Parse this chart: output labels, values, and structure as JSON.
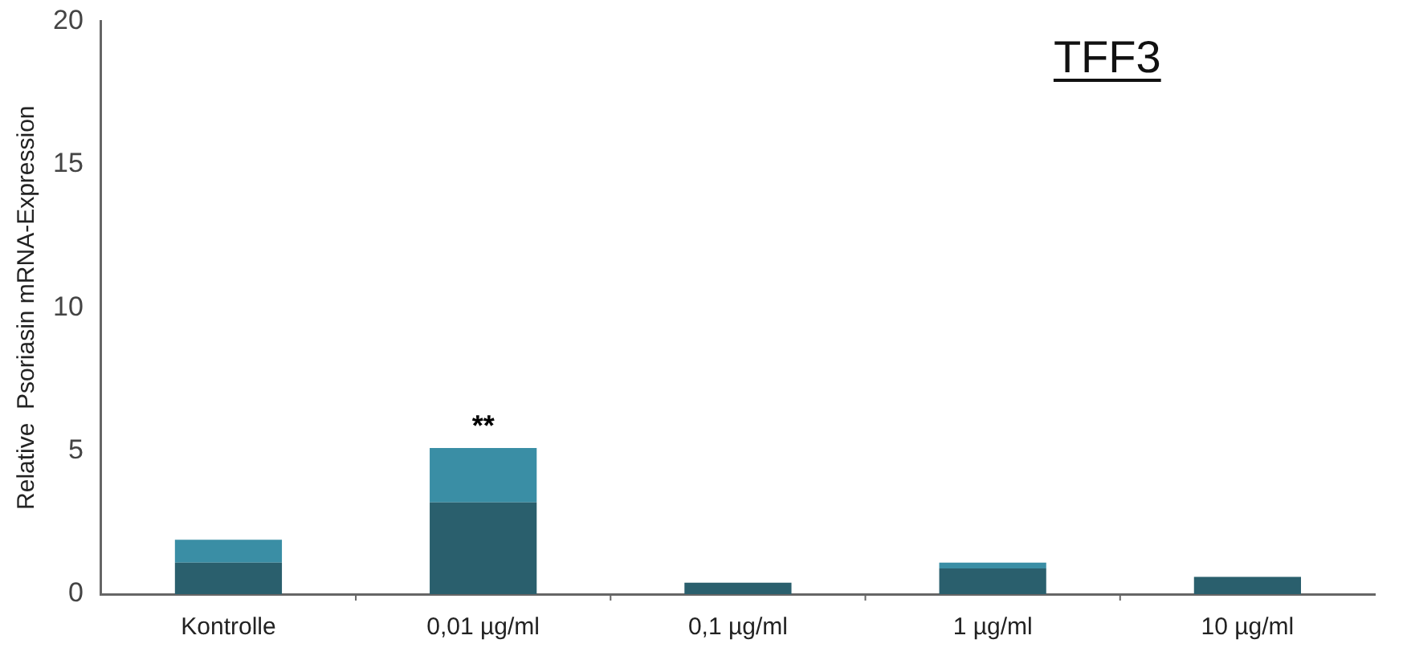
{
  "chart_data": {
    "type": "bar",
    "title": "TFF3",
    "ylabel": "Relative  Psoriasin mRNA-Expression",
    "categories": [
      "Kontrolle",
      "0,01 µg/ml",
      "0,1 µg/ml",
      "1 µg/ml",
      "10 µg/ml"
    ],
    "stacked": true,
    "series": [
      {
        "color": "#2a5f6d",
        "values": [
          1.1,
          3.2,
          0.4,
          0.9,
          0.6
        ]
      },
      {
        "color": "#3a8ea5",
        "values": [
          0.8,
          1.9,
          0,
          0.2,
          0
        ]
      }
    ],
    "ylim": [
      0,
      20
    ],
    "yticks": [
      0,
      5,
      10,
      15,
      20
    ],
    "grid": false,
    "legend": false,
    "annotations": [
      {
        "text": "**",
        "x": "0,01 µg/ml",
        "y": 5.1
      }
    ]
  }
}
